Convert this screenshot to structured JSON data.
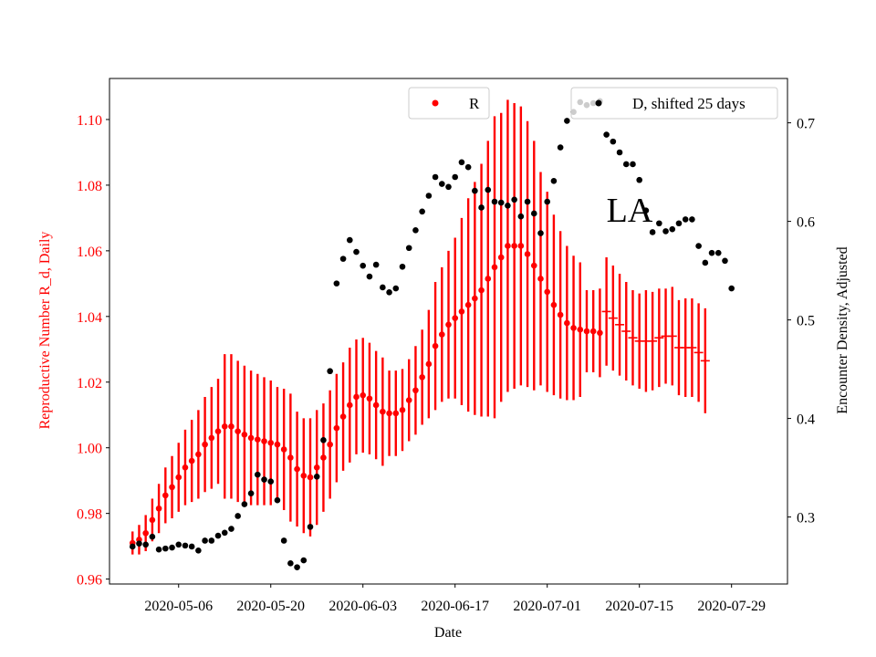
{
  "chart_data": {
    "type": "scatter",
    "annotation": "LA",
    "xlabel": "Date",
    "ylabel_left": "Reproductive Number R_d, Daily",
    "ylabel_right": "Encounter Density, Adjusted",
    "x_start": "2020-04-29",
    "x_tick_labels": [
      "2020-05-06",
      "2020-05-20",
      "2020-06-03",
      "2020-06-17",
      "2020-07-01",
      "2020-07-15",
      "2020-07-29"
    ],
    "x_tick_days": [
      7,
      21,
      35,
      49,
      63,
      77,
      91
    ],
    "xlim_days": [
      -3.5,
      99.5
    ],
    "ylim_left": [
      0.9585,
      1.1125
    ],
    "ylim_right": [
      0.232,
      0.745
    ],
    "yticks_left": [
      "0.96",
      "0.98",
      "1.00",
      "1.02",
      "1.04",
      "1.06",
      "1.08",
      "1.10"
    ],
    "yticks_right": [
      "0.3",
      "0.4",
      "0.5",
      "0.6",
      "0.7"
    ],
    "colors": {
      "r_series": "#ff0000",
      "d_series": "#000000",
      "left_axis": "#ff0000"
    },
    "legend": [
      {
        "label": "R",
        "color": "#ff0000",
        "position": "upper-center"
      },
      {
        "label": "D, shifted 25 days",
        "color": "#000000",
        "position": "upper-right"
      }
    ],
    "series": [
      {
        "name": "R",
        "axis": "left",
        "x_start_day": 0,
        "y": [
          0.971,
          0.972,
          0.974,
          0.978,
          0.9815,
          0.9855,
          0.988,
          0.991,
          0.994,
          0.996,
          0.998,
          1.001,
          1.003,
          1.005,
          1.0065,
          1.0065,
          1.005,
          1.004,
          1.003,
          1.0025,
          1.002,
          1.0015,
          1.001,
          0.9995,
          0.997,
          0.9935,
          0.9915,
          0.991,
          0.994,
          0.997,
          1.001,
          1.006,
          1.0095,
          1.013,
          1.0155,
          1.016,
          1.015,
          1.013,
          1.011,
          1.0105,
          1.0105,
          1.0115,
          1.0145,
          1.0175,
          1.0215,
          1.0255,
          1.031,
          1.0345,
          1.0375,
          1.0395,
          1.0415,
          1.0435,
          1.0455,
          1.048,
          1.0515,
          1.055,
          1.058,
          1.0615,
          1.0615,
          1.0615,
          1.059,
          1.0555,
          1.0515,
          1.0475,
          1.0435,
          1.0405,
          1.038,
          1.0365,
          1.036,
          1.0355,
          1.0355,
          1.035
        ],
        "err": [
          0.0035,
          0.0045,
          0.0055,
          0.0065,
          0.0075,
          0.0085,
          0.0095,
          0.0105,
          0.0115,
          0.0125,
          0.0135,
          0.0145,
          0.0155,
          0.016,
          0.022,
          0.022,
          0.0215,
          0.021,
          0.0205,
          0.02,
          0.0195,
          0.019,
          0.0175,
          0.0185,
          0.0195,
          0.0175,
          0.0175,
          0.018,
          0.0175,
          0.0165,
          0.0165,
          0.0165,
          0.0165,
          0.0175,
          0.0175,
          0.0175,
          0.017,
          0.0165,
          0.0165,
          0.013,
          0.013,
          0.0125,
          0.0125,
          0.0135,
          0.0145,
          0.0165,
          0.0195,
          0.0205,
          0.0225,
          0.0245,
          0.0285,
          0.0325,
          0.0355,
          0.0385,
          0.042,
          0.046,
          0.044,
          0.0445,
          0.0435,
          0.0425,
          0.0405,
          0.038,
          0.0325,
          0.0305,
          0.0275,
          0.0255,
          0.0235,
          0.022,
          0.0205,
          0.0125,
          0.0125,
          0.0135
        ]
      },
      {
        "name": "R (tail)",
        "axis": "left",
        "x_start_day": 72,
        "y": [
          1.0415,
          1.0395,
          1.0375,
          1.0355,
          1.0335,
          1.0325,
          1.0325,
          1.0325,
          1.0335,
          1.034,
          1.034,
          1.0305,
          1.0305,
          1.0305,
          1.029,
          1.0265
        ],
        "err": [
          0.0165,
          0.016,
          0.0155,
          0.015,
          0.0145,
          0.0145,
          0.0155,
          0.015,
          0.015,
          0.0145,
          0.015,
          0.0145,
          0.015,
          0.015,
          0.015,
          0.016
        ]
      },
      {
        "name": "D, shifted 25 days",
        "axis": "right",
        "points": [
          [
            0,
            0.27
          ],
          [
            1,
            0.273
          ],
          [
            2,
            0.272
          ],
          [
            3,
            0.28
          ],
          [
            4,
            0.267
          ],
          [
            5,
            0.268
          ],
          [
            6,
            0.269
          ],
          [
            7,
            0.272
          ],
          [
            8,
            0.271
          ],
          [
            9,
            0.27
          ],
          [
            10,
            0.266
          ],
          [
            11,
            0.276
          ],
          [
            12,
            0.276
          ],
          [
            13,
            0.281
          ],
          [
            14,
            0.284
          ],
          [
            15,
            0.288
          ],
          [
            16,
            0.301
          ],
          [
            17,
            0.313
          ],
          [
            18,
            0.324
          ],
          [
            19,
            0.343
          ],
          [
            20,
            0.338
          ],
          [
            21,
            0.336
          ],
          [
            22,
            0.317
          ],
          [
            23,
            0.276
          ],
          [
            24,
            0.253
          ],
          [
            25,
            0.249
          ],
          [
            26,
            0.256
          ],
          [
            27,
            0.29
          ],
          [
            28,
            0.341
          ],
          [
            29,
            0.378
          ],
          [
            30,
            0.448
          ],
          [
            31,
            0.537
          ],
          [
            32,
            0.562
          ],
          [
            33,
            0.581
          ],
          [
            34,
            0.569
          ],
          [
            35,
            0.555
          ],
          [
            36,
            0.544
          ],
          [
            37,
            0.556
          ],
          [
            38,
            0.533
          ],
          [
            39,
            0.528
          ],
          [
            40,
            0.532
          ],
          [
            41,
            0.554
          ],
          [
            42,
            0.573
          ],
          [
            43,
            0.591
          ],
          [
            44,
            0.61
          ],
          [
            45,
            0.626
          ],
          [
            46,
            0.645
          ],
          [
            47,
            0.638
          ],
          [
            48,
            0.635
          ],
          [
            49,
            0.645
          ],
          [
            50,
            0.66
          ],
          [
            51,
            0.655
          ],
          [
            52,
            0.631
          ],
          [
            53,
            0.614
          ],
          [
            54,
            0.632
          ],
          [
            55,
            0.62
          ],
          [
            56,
            0.619
          ],
          [
            57,
            0.616
          ],
          [
            58,
            0.622
          ],
          [
            59,
            0.605
          ],
          [
            60,
            0.62
          ],
          [
            61,
            0.608
          ],
          [
            62,
            0.588
          ],
          [
            63,
            0.62
          ],
          [
            64,
            0.641
          ],
          [
            65,
            0.675
          ],
          [
            66,
            0.702
          ],
          [
            67,
            0.711
          ],
          [
            68,
            0.721
          ],
          [
            69,
            0.718
          ],
          [
            70,
            0.72
          ],
          [
            71,
            0.722
          ],
          [
            72,
            0.688
          ],
          [
            73,
            0.681
          ],
          [
            74,
            0.67
          ],
          [
            75,
            0.658
          ],
          [
            76,
            0.658
          ],
          [
            77,
            0.642
          ],
          [
            78,
            0.611
          ],
          [
            79,
            0.589
          ],
          [
            80,
            0.598
          ],
          [
            81,
            0.59
          ],
          [
            82,
            0.592
          ],
          [
            83,
            0.598
          ],
          [
            84,
            0.602
          ],
          [
            85,
            0.602
          ],
          [
            86,
            0.575
          ],
          [
            87,
            0.558
          ],
          [
            88,
            0.568
          ],
          [
            89,
            0.568
          ],
          [
            90,
            0.56
          ],
          [
            91,
            0.532
          ]
        ]
      }
    ]
  }
}
